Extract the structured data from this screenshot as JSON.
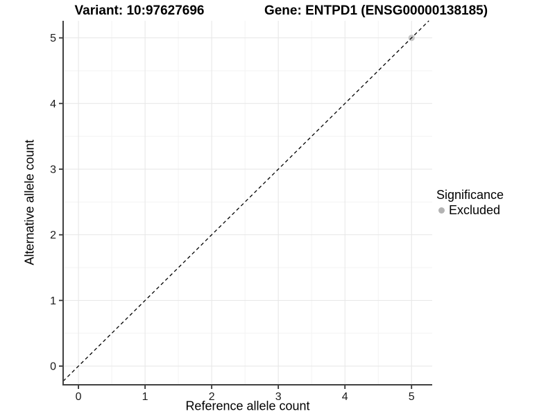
{
  "chart_data": {
    "type": "scatter",
    "title_variant": "Variant: 10:97627696",
    "title_gene": "Gene: ENTPD1 (ENSG00000138185)",
    "xlabel": "Reference allele count",
    "ylabel": "Alternative allele count",
    "x_ticks": [
      0,
      1,
      2,
      3,
      4,
      5
    ],
    "y_ticks": [
      0,
      1,
      2,
      3,
      4,
      5
    ],
    "xlim": [
      -0.23,
      5.31
    ],
    "ylim": [
      -0.285,
      5.26
    ],
    "grid": {
      "major": true,
      "minor": true
    },
    "reference_line": {
      "kind": "identity",
      "style": "dashed",
      "color": "#000000",
      "from_xy": 0,
      "to_xy": 5
    },
    "series": [
      {
        "name": "Excluded",
        "color": "#c6c6c6",
        "marker": "circle",
        "points": [
          [
            5,
            5
          ]
        ]
      }
    ],
    "legend": {
      "title": "Significance",
      "position": "right",
      "items": [
        {
          "label": "Excluded",
          "color": "#b3b3b3",
          "marker": "circle"
        }
      ]
    },
    "colors": {
      "background": "#ffffff",
      "grid_major": "#e6e6e6",
      "grid_minor": "#f3f3f3",
      "axis_line": "#404040",
      "tick_mark": "#333333",
      "tick_label": "#1a1a1a"
    }
  }
}
